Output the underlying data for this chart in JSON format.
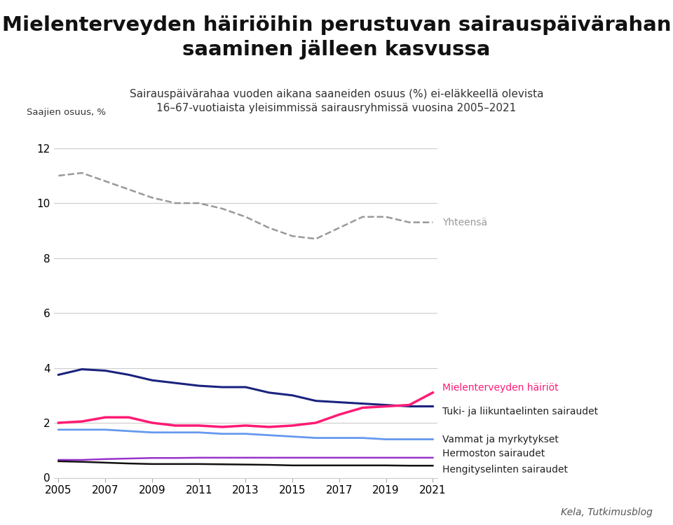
{
  "title": "Mielenterveyden häiriöihin perustuvan sairauspäivärahan\nsaaminen jälleen kasvussa",
  "subtitle": "Sairauspäivärahaa vuoden aikana saaneiden osuus (%) ei-eläkkeellä olevista\n16–67-vuotiaista yleisimmissä sairausryhmissä vuosina 2005–2021",
  "ylabel": "Saajien osuus, %",
  "source": "Kela, Tutkimusblog",
  "years": [
    2005,
    2006,
    2007,
    2008,
    2009,
    2010,
    2011,
    2012,
    2013,
    2014,
    2015,
    2016,
    2017,
    2018,
    2019,
    2020,
    2021
  ],
  "yhteensa": [
    11.0,
    11.1,
    10.8,
    10.5,
    10.2,
    10.0,
    10.0,
    9.8,
    9.5,
    9.1,
    8.8,
    8.7,
    9.1,
    9.5,
    9.5,
    9.3,
    9.3
  ],
  "mielenterveys": [
    2.0,
    2.05,
    2.2,
    2.2,
    2.0,
    1.9,
    1.9,
    1.85,
    1.9,
    1.85,
    1.9,
    2.0,
    2.3,
    2.55,
    2.6,
    2.65,
    3.1
  ],
  "tuki_liikunta": [
    3.75,
    3.95,
    3.9,
    3.75,
    3.55,
    3.45,
    3.35,
    3.3,
    3.3,
    3.1,
    3.0,
    2.8,
    2.75,
    2.7,
    2.65,
    2.6,
    2.6
  ],
  "vammat": [
    1.75,
    1.75,
    1.75,
    1.7,
    1.65,
    1.65,
    1.65,
    1.6,
    1.6,
    1.55,
    1.5,
    1.45,
    1.45,
    1.45,
    1.4,
    1.4,
    1.4
  ],
  "hermoston": [
    0.65,
    0.65,
    0.68,
    0.7,
    0.72,
    0.72,
    0.73,
    0.73,
    0.73,
    0.73,
    0.73,
    0.73,
    0.73,
    0.73,
    0.73,
    0.73,
    0.73
  ],
  "hengitys": [
    0.6,
    0.58,
    0.55,
    0.52,
    0.5,
    0.5,
    0.5,
    0.49,
    0.48,
    0.47,
    0.45,
    0.45,
    0.45,
    0.45,
    0.45,
    0.44,
    0.44
  ],
  "colors": {
    "yhteensa": "#999999",
    "mielenterveys": "#ff1a75",
    "tuki_liikunta": "#1a237e",
    "vammat": "#6699ee",
    "hermoston": "#9933cc",
    "hengitys": "#111111"
  },
  "labels": {
    "yhteensa": "Yhteensä",
    "mielenterveys": "Mielenterveyden häiriöt",
    "tuki_liikunta": "Tuki- ja liikuntaelinten sairaudet",
    "vammat": "Vammat ja myrkytykset",
    "hermoston": "Hermoston sairaudet",
    "hengitys": "Hengityselinten sairaudet"
  },
  "ylim": [
    0,
    13
  ],
  "yticks": [
    0,
    2,
    4,
    6,
    8,
    10,
    12
  ],
  "xticks": [
    2005,
    2007,
    2009,
    2011,
    2013,
    2015,
    2017,
    2019,
    2021
  ],
  "background_color": "#ffffff"
}
